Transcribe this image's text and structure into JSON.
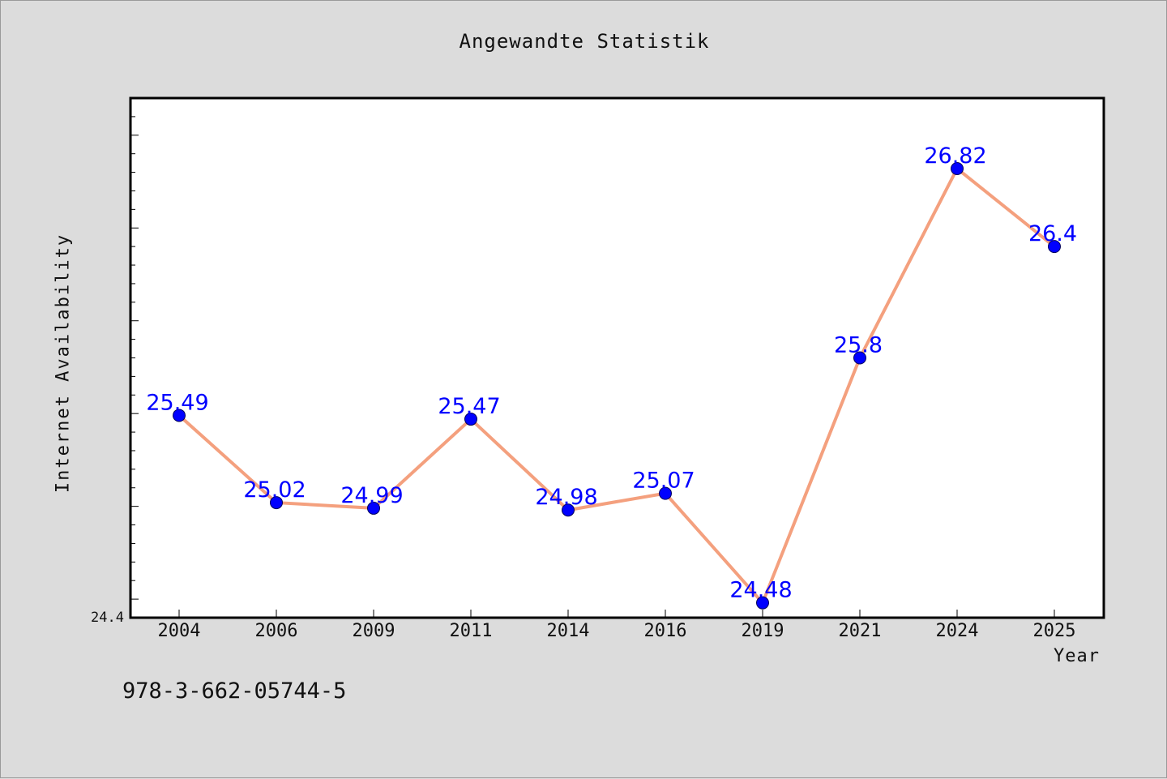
{
  "colors": {
    "background": "#dcdcdc",
    "plot_background": "#ffffff",
    "line": "#f4a07e",
    "marker": "#0000ff",
    "data_label": "#0000ff"
  },
  "footer": {
    "isbn": "978-3-662-05744-5"
  },
  "chart_data": {
    "type": "line",
    "title": "Angewandte Statistik",
    "xlabel": "Year",
    "ylabel": "Internet Availability",
    "categories": [
      "2004",
      "2006",
      "2009",
      "2011",
      "2014",
      "2016",
      "2019",
      "2021",
      "2024",
      "2025"
    ],
    "series": [
      {
        "values": [
          25.49,
          25.02,
          24.99,
          25.47,
          24.98,
          25.07,
          24.48,
          25.8,
          26.82,
          26.4
        ],
        "labels": [
          "25.49",
          "25.02",
          "24.99",
          "25.47",
          "24.98",
          "25.07",
          "24.48",
          "25.8",
          "26.82",
          "26.4"
        ]
      }
    ],
    "ylim": [
      24.4,
      27.2
    ],
    "y_tick_labels": [
      "24.4"
    ],
    "grid": false,
    "legend": "none"
  }
}
